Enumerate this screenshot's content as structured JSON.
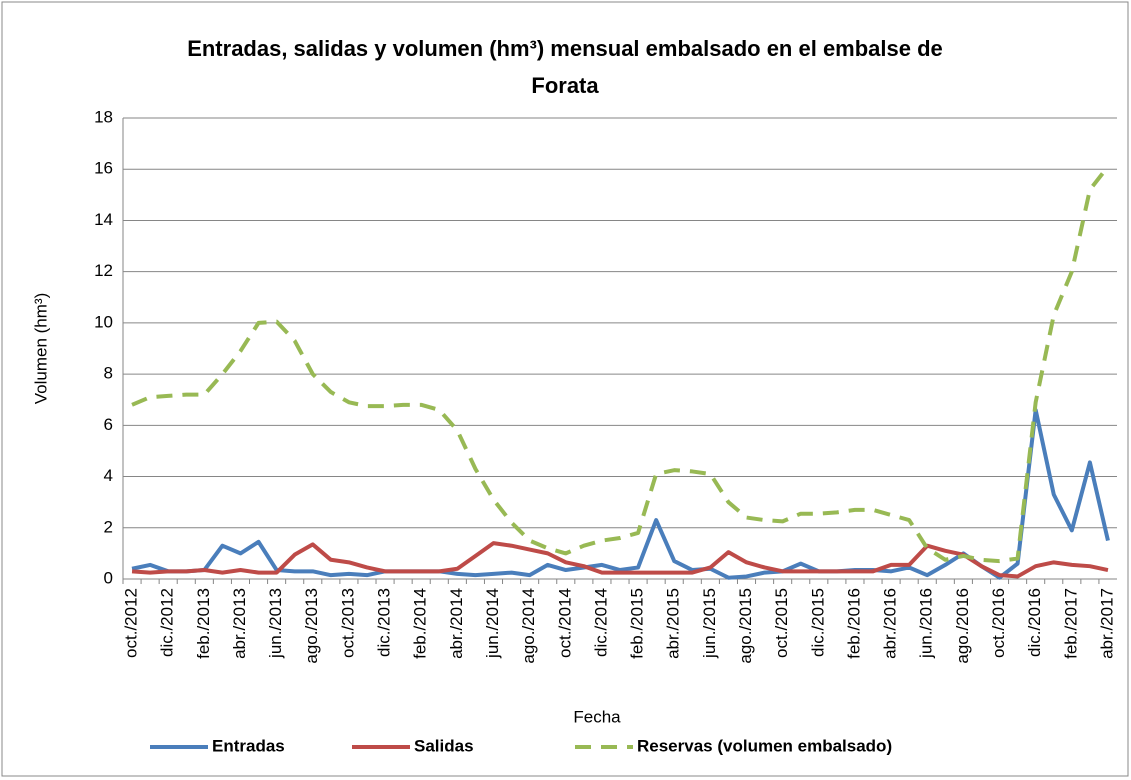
{
  "chart_data": {
    "type": "line",
    "title": "Entradas, salidas y volumen (hm³) mensual embalsado en el embalse de Forata",
    "x_label": "Fecha",
    "y_label": "Volumen (hm³)",
    "categories": [
      "oct./2012",
      null,
      "dic./2012",
      null,
      "feb./2013",
      null,
      "abr./2013",
      null,
      "jun./2013",
      null,
      "ago./2013",
      null,
      "oct./2013",
      null,
      "dic./2013",
      null,
      "feb./2014",
      null,
      "abr./2014",
      null,
      "jun./2014",
      null,
      "ago./2014",
      null,
      "oct./2014",
      null,
      "dic./2014",
      null,
      "feb./2015",
      null,
      "abr./2015",
      null,
      "jun./2015",
      null,
      "ago./2015",
      null,
      "oct./2015",
      null,
      "dic./2015",
      null,
      "feb./2016",
      null,
      "abr./2016",
      null,
      "jun./2016",
      null,
      "ago./2016",
      null,
      "oct./2016",
      null,
      "dic./2016",
      null,
      "feb./2017",
      null,
      "abr./2017"
    ],
    "series": [
      {
        "name": "Entradas",
        "color": "#4a7ebb",
        "dash": false,
        "values": [
          0.4,
          0.55,
          0.3,
          0.3,
          0.35,
          1.3,
          1.0,
          1.45,
          0.35,
          0.3,
          0.3,
          0.15,
          0.2,
          0.15,
          0.3,
          0.3,
          0.3,
          0.3,
          0.2,
          0.15,
          0.2,
          0.25,
          0.15,
          0.55,
          0.35,
          0.45,
          0.55,
          0.35,
          0.45,
          2.3,
          0.7,
          0.35,
          0.4,
          0.05,
          0.1,
          0.25,
          0.3,
          0.6,
          0.3,
          0.3,
          0.35,
          0.35,
          0.3,
          0.45,
          0.15,
          0.55,
          1.0,
          0.5,
          0.05,
          0.6,
          6.6,
          3.3,
          1.9,
          4.55,
          1.5
        ]
      },
      {
        "name": "Salidas",
        "color": "#be4b48",
        "dash": false,
        "values": [
          0.3,
          0.25,
          0.3,
          0.3,
          0.35,
          0.25,
          0.35,
          0.25,
          0.25,
          0.95,
          1.35,
          0.75,
          0.65,
          0.45,
          0.3,
          0.3,
          0.3,
          0.3,
          0.4,
          0.9,
          1.4,
          1.3,
          1.15,
          1.0,
          0.65,
          0.5,
          0.25,
          0.25,
          0.25,
          0.25,
          0.25,
          0.25,
          0.45,
          1.05,
          0.65,
          0.45,
          0.3,
          0.3,
          0.3,
          0.3,
          0.3,
          0.3,
          0.55,
          0.55,
          1.3,
          1.1,
          0.95,
          0.5,
          0.15,
          0.1,
          0.5,
          0.65,
          0.55,
          0.5,
          0.35
        ]
      },
      {
        "name": "Reservas (volumen embalsado)",
        "color": "#98b954",
        "dash": true,
        "values": [
          6.8,
          7.1,
          7.15,
          7.2,
          7.2,
          8.0,
          8.9,
          10.0,
          10.05,
          9.3,
          8.0,
          7.3,
          6.9,
          6.75,
          6.75,
          6.8,
          6.8,
          6.6,
          5.8,
          4.3,
          3.1,
          2.2,
          1.5,
          1.2,
          1.0,
          1.3,
          1.5,
          1.6,
          1.8,
          4.1,
          4.25,
          4.2,
          4.1,
          3.0,
          2.4,
          2.3,
          2.25,
          2.55,
          2.55,
          2.6,
          2.7,
          2.7,
          2.5,
          2.3,
          1.2,
          0.75,
          0.9,
          0.75,
          0.7,
          0.8,
          6.9,
          10.3,
          12.0,
          15.2,
          16.1
        ]
      }
    ],
    "ylim": [
      0,
      18
    ],
    "yticks": [
      0,
      2,
      4,
      6,
      8,
      10,
      12,
      14,
      16,
      18
    ],
    "grid": true,
    "legend": "bottom"
  }
}
